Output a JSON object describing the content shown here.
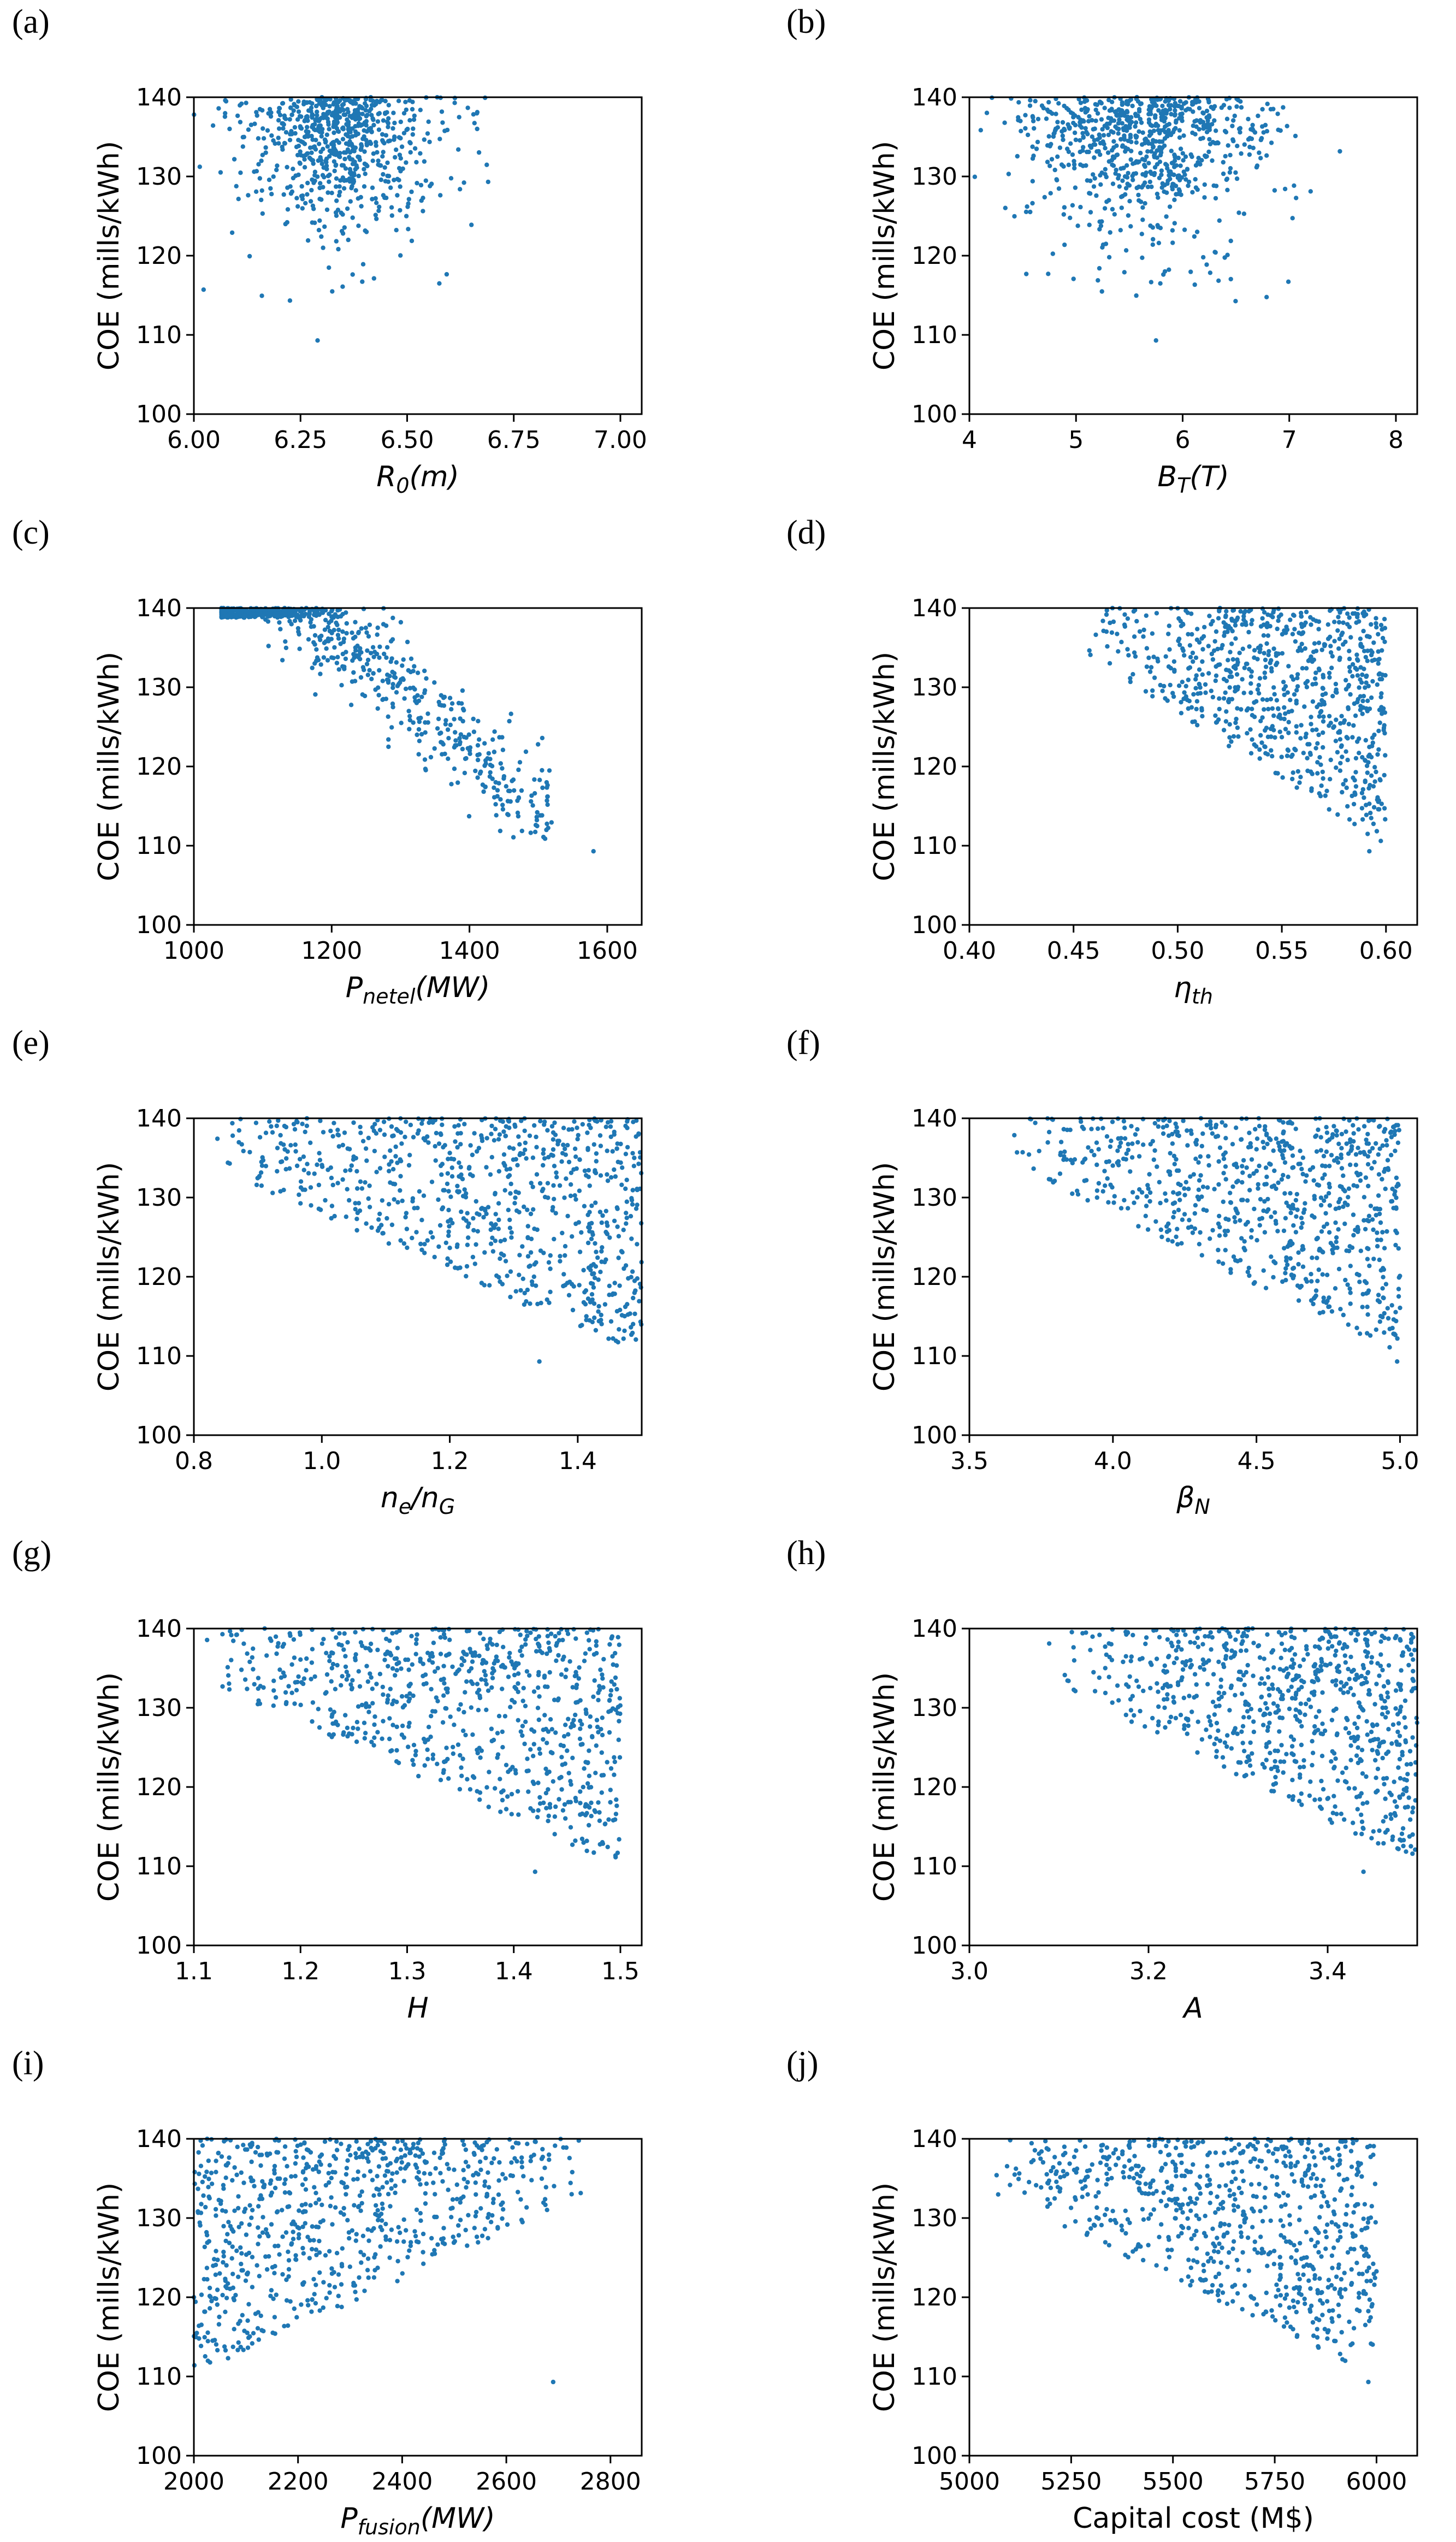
{
  "chart_data": [
    {
      "panel": "(a)",
      "type": "scatter",
      "ylabel": "COE (mills/kWh)",
      "xlabel_main": "R",
      "xlabel_sub": "0",
      "xlabel_rest": "(m)",
      "xlim": [
        6.0,
        7.05
      ],
      "ylim": [
        100,
        140
      ],
      "xticks": [
        6.0,
        6.25,
        6.5,
        6.75,
        7.0
      ],
      "xtick_labels": [
        "6.00",
        "6.25",
        "6.50",
        "6.75",
        "7.00"
      ],
      "yticks": [
        100,
        110,
        120,
        130,
        140
      ],
      "ytick_labels": [
        "100",
        "110",
        "120",
        "130",
        "140"
      ],
      "distribution": {
        "n": 720,
        "seed": 11,
        "x_center": 6.34,
        "x_spread": 0.09,
        "x_tail": 0.28,
        "y_pattern": "cluster",
        "coe_min": 109.3,
        "coe_min_x": 6.29
      },
      "x": [],
      "y": []
    },
    {
      "panel": "(b)",
      "type": "scatter",
      "ylabel": "COE (mills/kWh)",
      "xlabel_main": "B",
      "xlabel_sub": "T",
      "xlabel_rest": "(T)",
      "xlim": [
        4.0,
        8.2
      ],
      "ylim": [
        100,
        140
      ],
      "xticks": [
        4,
        5,
        6,
        7,
        8
      ],
      "xtick_labels": [
        "4",
        "5",
        "6",
        "7",
        "8"
      ],
      "yticks": [
        100,
        110,
        120,
        130,
        140
      ],
      "ytick_labels": [
        "100",
        "110",
        "120",
        "130",
        "140"
      ],
      "distribution": {
        "n": 780,
        "seed": 23,
        "x_center": 5.65,
        "x_spread": 0.55,
        "x_tail": 0.6,
        "y_pattern": "cluster",
        "coe_min": 109.3,
        "coe_min_x": 5.75
      },
      "x": [],
      "y": []
    },
    {
      "panel": "(c)",
      "type": "scatter",
      "ylabel": "COE (mills/kWh)",
      "xlabel_main": "P",
      "xlabel_sub": "netel",
      "xlabel_rest": "(MW)",
      "xlim": [
        1000,
        1650
      ],
      "ylim": [
        100,
        140
      ],
      "xticks": [
        1000,
        1200,
        1400,
        1600
      ],
      "xtick_labels": [
        "1000",
        "1200",
        "1400",
        "1600"
      ],
      "yticks": [
        100,
        110,
        120,
        130,
        140
      ],
      "ytick_labels": [
        "100",
        "110",
        "120",
        "130",
        "140"
      ],
      "distribution": {
        "n": 760,
        "seed": 37,
        "x_center": 1190,
        "x_spread": 1,
        "x_tail": 0,
        "y_pattern": "linear",
        "slope": -0.0745,
        "intercept": 227.0,
        "noise": 3.2,
        "coe_min": 109.3,
        "coe_min_x": 1580
      },
      "x": [],
      "y": []
    },
    {
      "panel": "(d)",
      "type": "scatter",
      "ylabel": "COE (mills/kWh)",
      "xlabel_main": "η",
      "xlabel_sub": "th",
      "xlabel_rest": "",
      "xlim": [
        0.4,
        0.615
      ],
      "ylim": [
        100,
        140
      ],
      "xticks": [
        0.4,
        0.45,
        0.5,
        0.55,
        0.6
      ],
      "xtick_labels": [
        "0.40",
        "0.45",
        "0.50",
        "0.55",
        "0.60"
      ],
      "yticks": [
        100,
        110,
        120,
        130,
        140
      ],
      "ytick_labels": [
        "100",
        "110",
        "120",
        "130",
        "140"
      ],
      "distribution": {
        "n": 780,
        "seed": 41,
        "x_center": 0.6,
        "x_spread": 0.12,
        "x_tail": 0,
        "y_pattern": "wedge",
        "x_lo": 0.455,
        "x_hi": 0.6,
        "coe_min": 109.3,
        "coe_min_x": 0.592
      },
      "x": [],
      "y": []
    },
    {
      "panel": "(e)",
      "type": "scatter",
      "ylabel": "COE (mills/kWh)",
      "xlabel_main": "n",
      "xlabel_sub": "e",
      "xlabel_rest": "/n",
      "xlabel_sub2": "G",
      "xlim": [
        0.8,
        1.5
      ],
      "ylim": [
        100,
        140
      ],
      "xticks": [
        0.8,
        1.0,
        1.2,
        1.4
      ],
      "xtick_labels": [
        "0.8",
        "1.0",
        "1.2",
        "1.4"
      ],
      "yticks": [
        100,
        110,
        120,
        130,
        140
      ],
      "ytick_labels": [
        "100",
        "110",
        "120",
        "130",
        "140"
      ],
      "distribution": {
        "n": 780,
        "seed": 53,
        "x_center": 1.5,
        "x_spread": 0.55,
        "x_tail": 0,
        "y_pattern": "wedge",
        "x_lo": 0.82,
        "x_hi": 1.5,
        "coe_min": 109.3,
        "coe_min_x": 1.34
      },
      "x": [],
      "y": []
    },
    {
      "panel": "(f)",
      "type": "scatter",
      "ylabel": "COE (mills/kWh)",
      "xlabel_main": "β",
      "xlabel_sub": "N",
      "xlabel_rest": "",
      "xlim": [
        3.5,
        5.06
      ],
      "ylim": [
        100,
        140
      ],
      "xticks": [
        3.5,
        4.0,
        4.5,
        5.0
      ],
      "xtick_labels": [
        "3.5",
        "4.0",
        "4.5",
        "5.0"
      ],
      "yticks": [
        100,
        110,
        120,
        130,
        140
      ],
      "ytick_labels": [
        "100",
        "110",
        "120",
        "130",
        "140"
      ],
      "distribution": {
        "n": 780,
        "seed": 67,
        "x_center": 5.0,
        "x_spread": 1.3,
        "x_tail": 0,
        "y_pattern": "wedge",
        "x_lo": 3.65,
        "x_hi": 5.0,
        "coe_min": 109.3,
        "coe_min_x": 4.99
      },
      "x": [],
      "y": []
    },
    {
      "panel": "(g)",
      "type": "scatter",
      "ylabel": "COE (mills/kWh)",
      "xlabel_main": "H",
      "xlabel_sub": "",
      "xlabel_rest": "",
      "xlim": [
        1.1,
        1.52
      ],
      "ylim": [
        100,
        140
      ],
      "xticks": [
        1.1,
        1.2,
        1.3,
        1.4,
        1.5
      ],
      "xtick_labels": [
        "1.1",
        "1.2",
        "1.3",
        "1.4",
        "1.5"
      ],
      "yticks": [
        100,
        110,
        120,
        130,
        140
      ],
      "ytick_labels": [
        "100",
        "110",
        "120",
        "130",
        "140"
      ],
      "distribution": {
        "n": 760,
        "seed": 79,
        "x_center": 1.5,
        "x_spread": 0.38,
        "x_tail": 0,
        "y_pattern": "wedge",
        "x_lo": 1.1,
        "x_hi": 1.5,
        "coe_min": 109.3,
        "coe_min_x": 1.42
      },
      "x": [],
      "y": []
    },
    {
      "panel": "(h)",
      "type": "scatter",
      "ylabel": "COE (mills/kWh)",
      "xlabel_main": "A",
      "xlabel_sub": "",
      "xlabel_rest": "",
      "xlim": [
        3.0,
        3.5
      ],
      "ylim": [
        100,
        140
      ],
      "xticks": [
        3.0,
        3.2,
        3.4
      ],
      "xtick_labels": [
        "3.0",
        "3.2",
        "3.4"
      ],
      "yticks": [
        100,
        110,
        120,
        130,
        140
      ],
      "ytick_labels": [
        "100",
        "110",
        "120",
        "130",
        "140"
      ],
      "distribution": {
        "n": 780,
        "seed": 83,
        "x_center": 3.5,
        "x_spread": 0.38,
        "x_tail": 0,
        "y_pattern": "wedge",
        "x_lo": 3.08,
        "x_hi": 3.5,
        "coe_min": 109.3,
        "coe_min_x": 3.44
      },
      "x": [],
      "y": []
    },
    {
      "panel": "(i)",
      "type": "scatter",
      "ylabel": "COE (mills/kWh)",
      "xlabel_main": "P",
      "xlabel_sub": "fusion",
      "xlabel_rest": "(MW)",
      "xlim": [
        2000,
        2860
      ],
      "ylim": [
        100,
        140
      ],
      "xticks": [
        2000,
        2200,
        2400,
        2600,
        2800
      ],
      "xtick_labels": [
        "2000",
        "2200",
        "2400",
        "2600",
        "2800"
      ],
      "yticks": [
        100,
        110,
        120,
        130,
        140
      ],
      "ytick_labels": [
        "100",
        "110",
        "120",
        "130",
        "140"
      ],
      "distribution": {
        "n": 760,
        "seed": 97,
        "x_center": 2000,
        "x_spread": 780,
        "x_tail": 0,
        "y_pattern": "wedge_rev",
        "x_lo": 2000,
        "x_hi": 2780,
        "coe_min": 109.3,
        "coe_min_x": 2690
      },
      "x": [],
      "y": []
    },
    {
      "panel": "(j)",
      "type": "scatter",
      "ylabel": "COE (mills/kWh)",
      "xlabel_main": "Capital cost (M$)",
      "xlabel_sub": "",
      "xlabel_rest": "",
      "xlabel_italic": false,
      "xlim": [
        5000,
        6100
      ],
      "ylim": [
        100,
        140
      ],
      "xticks": [
        5000,
        5250,
        5500,
        5750,
        6000
      ],
      "xtick_labels": [
        "5000",
        "5250",
        "5500",
        "5750",
        "6000"
      ],
      "yticks": [
        100,
        110,
        120,
        130,
        140
      ],
      "ytick_labels": [
        "100",
        "110",
        "120",
        "130",
        "140"
      ],
      "distribution": {
        "n": 760,
        "seed": 101,
        "x_center": 6000,
        "x_spread": 950,
        "x_tail": 0,
        "y_pattern": "wedge",
        "x_lo": 5020,
        "x_hi": 6000,
        "coe_min": 109.3,
        "coe_min_x": 5980
      },
      "x": [],
      "y": []
    }
  ]
}
